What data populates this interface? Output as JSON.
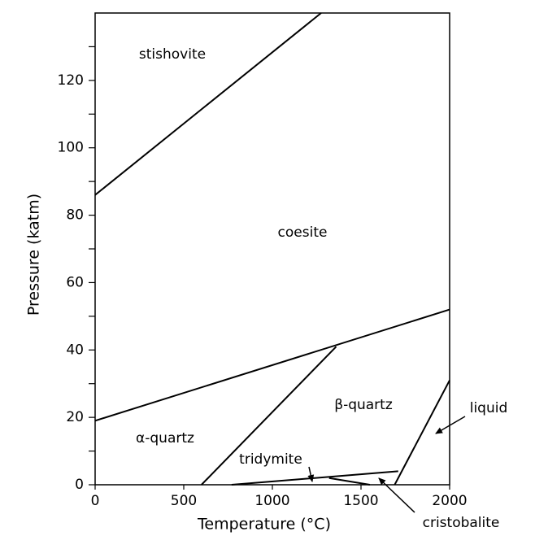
{
  "chart_data": {
    "type": "line",
    "x_label": "Temperature (°C)",
    "y_label": "Pressure (katm)",
    "xlim": [
      0,
      2000
    ],
    "xticks": [
      0,
      500,
      1000,
      1500,
      2000
    ],
    "ylim": [
      0,
      140
    ],
    "yticks": [
      0,
      20,
      40,
      60,
      80,
      100,
      120
    ],
    "yminorticks": [
      10,
      30,
      50,
      70,
      90,
      110,
      130
    ],
    "color": "#000000",
    "series": [
      {
        "x": [
          0,
          1275
        ],
        "values": [
          86,
          140
        ]
      },
      {
        "x": [
          0,
          2000
        ],
        "values": [
          19,
          52
        ]
      },
      {
        "x": [
          600,
          1360
        ],
        "values": [
          0,
          41
        ]
      },
      {
        "x": [
          770,
          1710
        ],
        "values": [
          0,
          4
        ]
      },
      {
        "x": [
          1320,
          1550
        ],
        "values": [
          2,
          0
        ]
      },
      {
        "x": [
          1690,
          2000
        ],
        "values": [
          0,
          31
        ]
      }
    ],
    "annotations": [
      "stishovite",
      "coesite",
      "β-quartz",
      "α-quartz",
      "tridymite",
      "liquid",
      "cristobalite"
    ]
  }
}
